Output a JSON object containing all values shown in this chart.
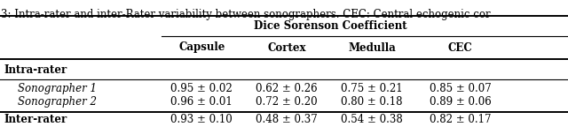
{
  "caption": "3: Intra-rater and inter-Rater variability between sonographers. CEC: Central echogenic cor",
  "header_group": "Dice Sorenson Coefficient",
  "columns": [
    "Capsule",
    "Cortex",
    "Medulla",
    "CEC"
  ],
  "rows": [
    {
      "label": "Intra-rater",
      "bold": true,
      "italic": false,
      "values": [
        "",
        "",
        "",
        ""
      ]
    },
    {
      "label": "Sonographer 1",
      "bold": false,
      "italic": true,
      "values": [
        "0.95 ± 0.02",
        "0.62 ± 0.26",
        "0.75 ± 0.21",
        "0.85 ± 0.07"
      ]
    },
    {
      "label": "Sonographer 2",
      "bold": false,
      "italic": true,
      "values": [
        "0.96 ± 0.01",
        "0.72 ± 0.20",
        "0.80 ± 0.18",
        "0.89 ± 0.06"
      ]
    },
    {
      "label": "Inter-rater",
      "bold": true,
      "italic": false,
      "values": [
        "0.93 ± 0.10",
        "0.48 ± 0.37",
        "0.54 ± 0.38",
        "0.82 ± 0.17"
      ]
    }
  ],
  "figsize": [
    6.4,
    1.44
  ],
  "dpi": 100,
  "font_size": 8.5
}
